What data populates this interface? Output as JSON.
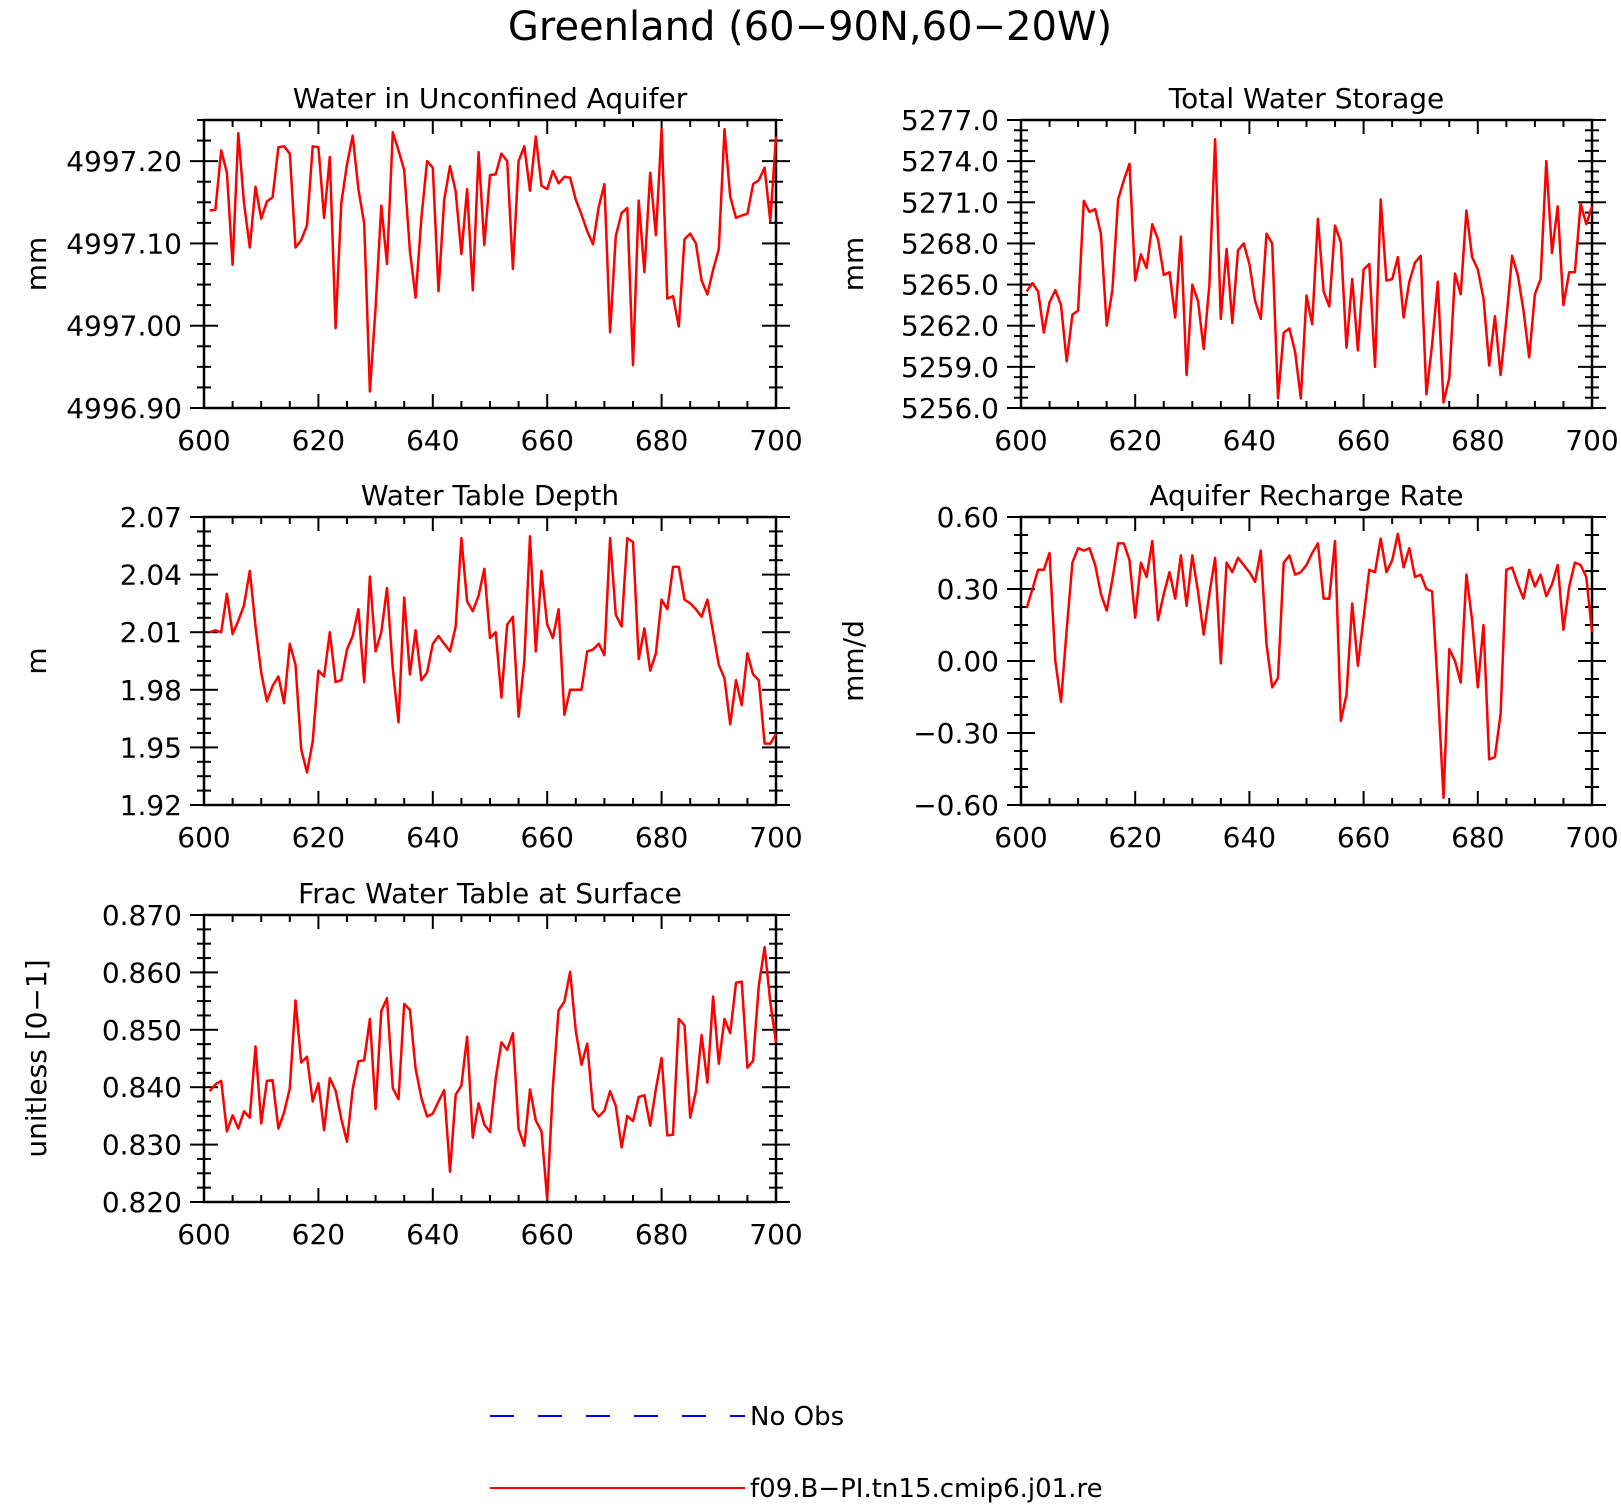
{
  "figure": {
    "title": "Greenland (60−90N,60−20W)"
  },
  "legend": {
    "entries": [
      {
        "label": "No Obs",
        "color": "#0000ff",
        "dash": "dashed"
      },
      {
        "label": "f09.B−PI.tn15.cmip6.j01.re",
        "color": "#ff0000",
        "dash": "solid"
      }
    ]
  },
  "chart_data": [
    {
      "type": "line",
      "title": "Water in Unconfined Aquifer",
      "xlabel": "",
      "ylabel": "mm",
      "xlim": [
        600,
        700
      ],
      "ylim": [
        4996.9,
        4997.25
      ],
      "xticks": [
        "600",
        "620",
        "640",
        "660",
        "680",
        "700"
      ],
      "yticks": [
        "4996.90",
        "4997.00",
        "4997.10",
        "4997.20"
      ],
      "ytick_values": [
        4996.9,
        4997.0,
        4997.1,
        4997.2
      ],
      "x_start": 601,
      "series": [
        {
          "color": "#ff0000",
          "values": [
            4997.14,
            4997.141,
            4997.213,
            4997.186,
            4997.074,
            4997.234,
            4997.149,
            4997.095,
            4997.169,
            4997.13,
            4997.151,
            4997.156,
            4997.217,
            4997.218,
            4997.209,
            4997.095,
            4997.104,
            4997.122,
            4997.218,
            4997.217,
            4997.131,
            4997.205,
            4996.997,
            4997.149,
            4997.196,
            4997.231,
            4997.166,
            4997.124,
            4996.92,
            4997.022,
            4997.146,
            4997.075,
            4997.235,
            4997.213,
            4997.189,
            4997.091,
            4997.034,
            4997.131,
            4997.2,
            4997.192,
            4997.042,
            4997.153,
            4997.194,
            4997.163,
            4997.087,
            4997.166,
            4997.043,
            4997.211,
            4997.098,
            4997.183,
            4997.184,
            4997.209,
            4997.2,
            4997.069,
            4997.2,
            4997.218,
            4997.164,
            4997.23,
            4997.17,
            4997.166,
            4997.188,
            4997.173,
            4997.181,
            4997.18,
            4997.153,
            4997.135,
            4997.115,
            4997.099,
            4997.144,
            4997.172,
            4996.992,
            4997.109,
            4997.137,
            4997.143,
            4996.952,
            4997.152,
            4997.065,
            4997.186,
            4997.11,
            4997.239,
            4997.033,
            4997.036,
            4996.999,
            4997.105,
            4997.112,
            4997.1,
            4997.055,
            4997.038,
            4997.068,
            4997.093,
            4997.239,
            4997.157,
            4997.131,
            4997.134,
            4997.136,
            4997.172,
            4997.177,
            4997.192,
            4997.127,
            4997.23
          ]
        }
      ]
    },
    {
      "type": "line",
      "title": "Total Water Storage",
      "xlabel": "",
      "ylabel": "mm",
      "xlim": [
        600,
        700
      ],
      "ylim": [
        5256.0,
        5277.0
      ],
      "xticks": [
        "600",
        "620",
        "640",
        "660",
        "680",
        "700"
      ],
      "yticks": [
        "5256.0",
        "5259.0",
        "5262.0",
        "5265.0",
        "5268.0",
        "5271.0",
        "5274.0",
        "5277.0"
      ],
      "ytick_values": [
        5256,
        5259,
        5262,
        5265,
        5268,
        5271,
        5274,
        5277
      ],
      "x_start": 601,
      "series": [
        {
          "color": "#ff0000",
          "values": [
            5264.5,
            5265.1,
            5264.5,
            5261.5,
            5263.7,
            5264.6,
            5263.5,
            5259.4,
            5262.8,
            5263.1,
            5271.1,
            5270.3,
            5270.5,
            5268.7,
            5262.0,
            5264.6,
            5271.2,
            5272.6,
            5273.8,
            5265.3,
            5267.2,
            5266.2,
            5269.4,
            5268.3,
            5265.7,
            5265.9,
            5262.6,
            5268.5,
            5258.4,
            5265.0,
            5263.8,
            5260.3,
            5265.0,
            5275.6,
            5262.5,
            5267.6,
            5262.2,
            5267.5,
            5268.0,
            5266.5,
            5263.8,
            5262.5,
            5268.7,
            5268.0,
            5256.7,
            5261.5,
            5261.8,
            5260.1,
            5256.7,
            5264.2,
            5262.1,
            5269.8,
            5264.5,
            5263.4,
            5269.3,
            5268.1,
            5260.4,
            5265.4,
            5260.2,
            5266.1,
            5266.5,
            5259.0,
            5271.2,
            5265.3,
            5265.4,
            5267.0,
            5262.6,
            5265.2,
            5266.6,
            5267.1,
            5257.0,
            5260.6,
            5265.2,
            5256.4,
            5258.2,
            5265.8,
            5264.3,
            5270.4,
            5267.0,
            5266.1,
            5264.0,
            5259.1,
            5262.7,
            5258.4,
            5262.4,
            5267.1,
            5265.7,
            5263.1,
            5259.7,
            5264.3,
            5265.4,
            5274.0,
            5267.3,
            5270.7,
            5263.5,
            5265.9,
            5265.9,
            5270.9,
            5269.4,
            5270.7
          ]
        }
      ]
    },
    {
      "type": "line",
      "title": "Water Table Depth",
      "xlabel": "",
      "ylabel": "m",
      "xlim": [
        600,
        700
      ],
      "ylim": [
        1.92,
        2.07
      ],
      "xticks": [
        "600",
        "620",
        "640",
        "660",
        "680",
        "700"
      ],
      "yticks": [
        "1.92",
        "1.95",
        "1.98",
        "2.01",
        "2.04",
        "2.07"
      ],
      "ytick_values": [
        1.92,
        1.95,
        1.98,
        2.01,
        2.04,
        2.07
      ],
      "x_start": 601,
      "series": [
        {
          "color": "#ff0000",
          "values": [
            2.01,
            2.011,
            2.01,
            2.03,
            2.009,
            2.016,
            2.024,
            2.042,
            2.013,
            1.989,
            1.974,
            1.982,
            1.987,
            1.973,
            2.004,
            1.993,
            1.949,
            1.937,
            1.953,
            1.99,
            1.987,
            2.01,
            1.984,
            1.985,
            2.001,
            2.008,
            2.022,
            1.984,
            2.039,
            2.0,
            2.01,
            2.033,
            1.991,
            1.963,
            2.028,
            1.988,
            2.011,
            1.985,
            1.989,
            2.004,
            2.008,
            2.004,
            2.0,
            2.013,
            2.059,
            2.026,
            2.021,
            2.029,
            2.043,
            2.007,
            2.01,
            1.976,
            2.014,
            2.018,
            1.966,
            1.995,
            2.06,
            2.0,
            2.042,
            2.014,
            2.007,
            2.022,
            1.967,
            1.98,
            1.98,
            1.98,
            2.0,
            2.001,
            2.004,
            1.998,
            2.059,
            2.019,
            2.013,
            2.059,
            2.057,
            1.996,
            2.012,
            1.99,
            1.999,
            2.027,
            2.022,
            2.044,
            2.044,
            2.027,
            2.025,
            2.022,
            2.018,
            2.027,
            2.01,
            1.993,
            1.986,
            1.962,
            1.985,
            1.972,
            1.999,
            1.988,
            1.985,
            1.952,
            1.952,
            1.957
          ]
        }
      ]
    },
    {
      "type": "line",
      "title": "Aquifer Recharge Rate",
      "xlabel": "",
      "ylabel": "mm/d",
      "xlim": [
        600,
        700
      ],
      "ylim": [
        -0.6,
        0.6
      ],
      "xticks": [
        "600",
        "620",
        "640",
        "660",
        "680",
        "700"
      ],
      "yticks": [
        "−0.60",
        "−0.30",
        "0.00",
        "0.30",
        "0.60"
      ],
      "ytick_values": [
        -0.6,
        -0.3,
        0.0,
        0.3,
        0.6
      ],
      "x_start": 601,
      "series": [
        {
          "color": "#ff0000",
          "values": [
            0.22,
            0.3,
            0.38,
            0.38,
            0.45,
            0.0,
            -0.17,
            0.13,
            0.41,
            0.47,
            0.46,
            0.47,
            0.4,
            0.28,
            0.21,
            0.34,
            0.49,
            0.49,
            0.42,
            0.18,
            0.41,
            0.35,
            0.5,
            0.17,
            0.28,
            0.37,
            0.26,
            0.44,
            0.23,
            0.44,
            0.29,
            0.11,
            0.28,
            0.43,
            -0.01,
            0.41,
            0.37,
            0.43,
            0.4,
            0.37,
            0.33,
            0.46,
            0.07,
            -0.11,
            -0.07,
            0.41,
            0.44,
            0.36,
            0.37,
            0.4,
            0.45,
            0.49,
            0.26,
            0.26,
            0.5,
            -0.25,
            -0.14,
            0.24,
            -0.02,
            0.18,
            0.38,
            0.37,
            0.51,
            0.37,
            0.42,
            0.53,
            0.39,
            0.47,
            0.35,
            0.36,
            0.3,
            0.29,
            -0.11,
            -0.57,
            0.05,
            0.0,
            -0.09,
            0.36,
            0.17,
            -0.11,
            0.15,
            -0.41,
            -0.4,
            -0.22,
            0.38,
            0.39,
            0.32,
            0.26,
            0.38,
            0.31,
            0.36,
            0.27,
            0.32,
            0.4,
            0.13,
            0.31,
            0.41,
            0.4,
            0.35,
            0.12
          ]
        }
      ]
    },
    {
      "type": "line",
      "title": "Frac Water Table at Surface",
      "xlabel": "",
      "ylabel": "unitless [0−1]",
      "xlim": [
        600,
        700
      ],
      "ylim": [
        0.82,
        0.87
      ],
      "xticks": [
        "600",
        "620",
        "640",
        "660",
        "680",
        "700"
      ],
      "yticks": [
        "0.820",
        "0.830",
        "0.840",
        "0.850",
        "0.860",
        "0.870"
      ],
      "ytick_values": [
        0.82,
        0.83,
        0.84,
        0.85,
        0.86,
        0.87
      ],
      "x_start": 601,
      "series": [
        {
          "color": "#ff0000",
          "values": [
            0.8393,
            0.8405,
            0.8411,
            0.8323,
            0.8351,
            0.8328,
            0.8358,
            0.8347,
            0.8471,
            0.8337,
            0.8411,
            0.8412,
            0.8328,
            0.8356,
            0.8398,
            0.8551,
            0.8443,
            0.8453,
            0.8375,
            0.8407,
            0.8325,
            0.8416,
            0.8394,
            0.8345,
            0.8305,
            0.8397,
            0.8445,
            0.8447,
            0.8519,
            0.8362,
            0.8533,
            0.8555,
            0.8398,
            0.8379,
            0.8545,
            0.8535,
            0.8432,
            0.8381,
            0.8349,
            0.8354,
            0.8375,
            0.8395,
            0.8253,
            0.8387,
            0.8403,
            0.8488,
            0.8312,
            0.8372,
            0.8335,
            0.8322,
            0.8415,
            0.8478,
            0.8465,
            0.8494,
            0.8327,
            0.8298,
            0.8396,
            0.8342,
            0.8323,
            0.8205,
            0.8401,
            0.8534,
            0.8549,
            0.8601,
            0.8498,
            0.8439,
            0.8476,
            0.8362,
            0.8349,
            0.8359,
            0.8393,
            0.8367,
            0.8295,
            0.835,
            0.8341,
            0.8383,
            0.8386,
            0.8333,
            0.8397,
            0.8451,
            0.8316,
            0.8317,
            0.8519,
            0.8508,
            0.8347,
            0.8393,
            0.8491,
            0.8408,
            0.8558,
            0.8441,
            0.8519,
            0.8494,
            0.8582,
            0.8584,
            0.8434,
            0.8446,
            0.8577,
            0.8644,
            0.8548,
            0.8478
          ]
        }
      ]
    }
  ]
}
